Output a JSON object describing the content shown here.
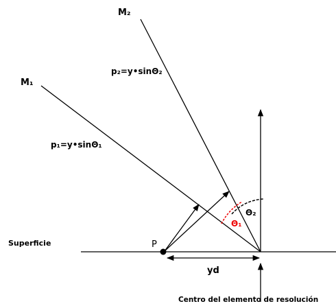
{
  "labels": {
    "m2": "M₂",
    "m1": "M₁",
    "p2": "p₂=y•sinΘ₂",
    "p1": "p₁=y•sinΘ₁",
    "theta2": "Θ₂",
    "theta1": "Θ₁",
    "surface": "Superficie",
    "point": "P",
    "yd": "yd",
    "center": "Centro del elemento de resolución"
  }
}
